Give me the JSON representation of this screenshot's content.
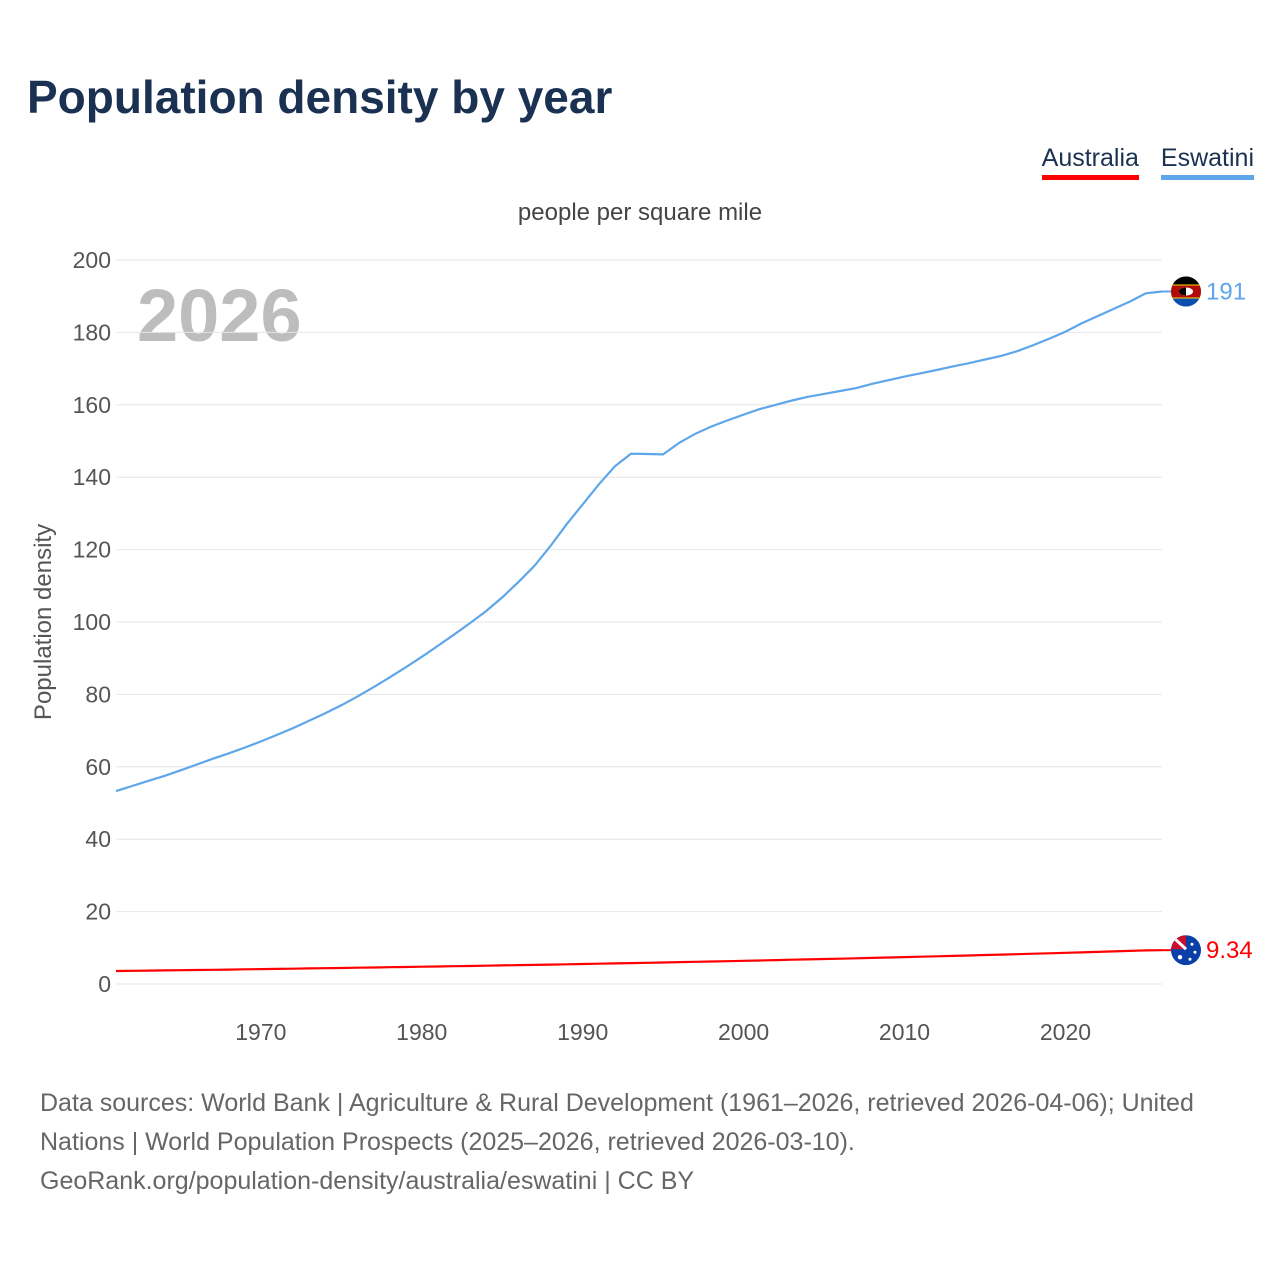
{
  "title": "Population density by year",
  "legend": [
    {
      "label": "Australia",
      "color": "#ff0000"
    },
    {
      "label": "Eswatini",
      "color": "#5ea6ea"
    }
  ],
  "footer": {
    "line1": "Data sources: World Bank | Agriculture & Rural Development (1961–2026, retrieved 2026-04-06); United Nations | World Population Prospects (2025–2026, retrieved 2026-03-10).",
    "line2": "GeoRank.org/population-density/australia/eswatini | CC BY"
  },
  "chart_data": {
    "type": "line",
    "subtitle": "people per square mile",
    "ylabel": "Population density",
    "xlabel": "",
    "year_watermark": "2026",
    "xlim": [
      1961,
      2026
    ],
    "ylim": [
      0,
      200
    ],
    "xticks": [
      1970,
      1980,
      1990,
      2000,
      2010,
      2020
    ],
    "yticks": [
      0,
      20,
      40,
      60,
      80,
      100,
      120,
      140,
      160,
      180,
      200
    ],
    "grid": true,
    "legend_position": "top-right",
    "x_start": 1961,
    "series": [
      {
        "name": "Eswatini",
        "color": "#5ea6ea",
        "end_label": "191",
        "flag": "eswatini-flag",
        "values": [
          53.3,
          54.7,
          56.1,
          57.5,
          59,
          60.6,
          62.2,
          63.7,
          65.3,
          67,
          68.8,
          70.7,
          72.7,
          74.8,
          77,
          79.4,
          82,
          84.7,
          87.5,
          90.4,
          93.4,
          96.5,
          99.7,
          103,
          106.8,
          111,
          115.5,
          121,
          127,
          132.5,
          138,
          143,
          146.5,
          146.4,
          146.3,
          149.5,
          152,
          154,
          155.7,
          157.3,
          158.8,
          160,
          161.2,
          162.2,
          163,
          163.8,
          164.6,
          165.8,
          166.8,
          167.8,
          168.7,
          169.6,
          170.6,
          171.5,
          172.5,
          173.5,
          174.8,
          176.5,
          178.3,
          180.2,
          182.5,
          184.5,
          186.5,
          188.5,
          190.8,
          191.3
        ]
      },
      {
        "name": "Australia",
        "color": "#ff0000",
        "end_label": "9.34",
        "flag": "australia-flag",
        "values": [
          3.6,
          3.65,
          3.71,
          3.76,
          3.82,
          3.88,
          3.93,
          3.99,
          4.05,
          4.11,
          4.17,
          4.23,
          4.3,
          4.36,
          4.43,
          4.49,
          4.56,
          4.63,
          4.7,
          4.77,
          4.84,
          4.91,
          4.98,
          5.06,
          5.13,
          5.21,
          5.29,
          5.37,
          5.45,
          5.53,
          5.61,
          5.69,
          5.78,
          5.86,
          5.95,
          6.04,
          6.13,
          6.22,
          6.31,
          6.41,
          6.5,
          6.6,
          6.7,
          6.8,
          6.9,
          7,
          7.11,
          7.21,
          7.32,
          7.43,
          7.54,
          7.65,
          7.77,
          7.88,
          8,
          8.12,
          8.24,
          8.36,
          8.49,
          8.61,
          8.74,
          8.87,
          9,
          9.13,
          9.27,
          9.34
        ]
      }
    ]
  }
}
